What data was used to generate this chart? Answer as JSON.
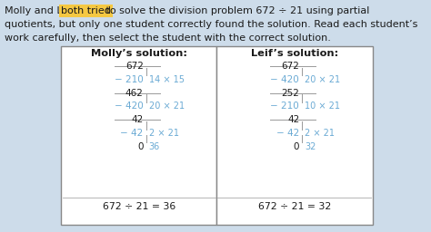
{
  "bg_color": "#cddcea",
  "text_color": "#1a1a1a",
  "blue_color": "#6aaad4",
  "highlight_color": "#f5c842",
  "molly_header": "Molly’s solution:",
  "leif_header": "Leif’s solution:",
  "molly_lines": [
    [
      "672",
      ""
    ],
    [
      "− 210",
      "14 × 15"
    ],
    [
      "462",
      ""
    ],
    [
      "− 420",
      "20 × 21"
    ],
    [
      "42",
      ""
    ],
    [
      "− 42",
      "2 × 21"
    ],
    [
      "0",
      "36"
    ]
  ],
  "leif_lines": [
    [
      "672",
      ""
    ],
    [
      "− 420",
      "20 × 21"
    ],
    [
      "252",
      ""
    ],
    [
      "− 210",
      "10 × 21"
    ],
    [
      "42",
      ""
    ],
    [
      "− 42",
      "2 × 21"
    ],
    [
      "0",
      "32"
    ]
  ],
  "molly_answer": "672 ÷ 21 = 36",
  "leif_answer": "672 ÷ 21 = 32",
  "fs_body": 8.0,
  "fs_header": 8.2,
  "fs_table": 7.5,
  "fs_answer": 7.8
}
